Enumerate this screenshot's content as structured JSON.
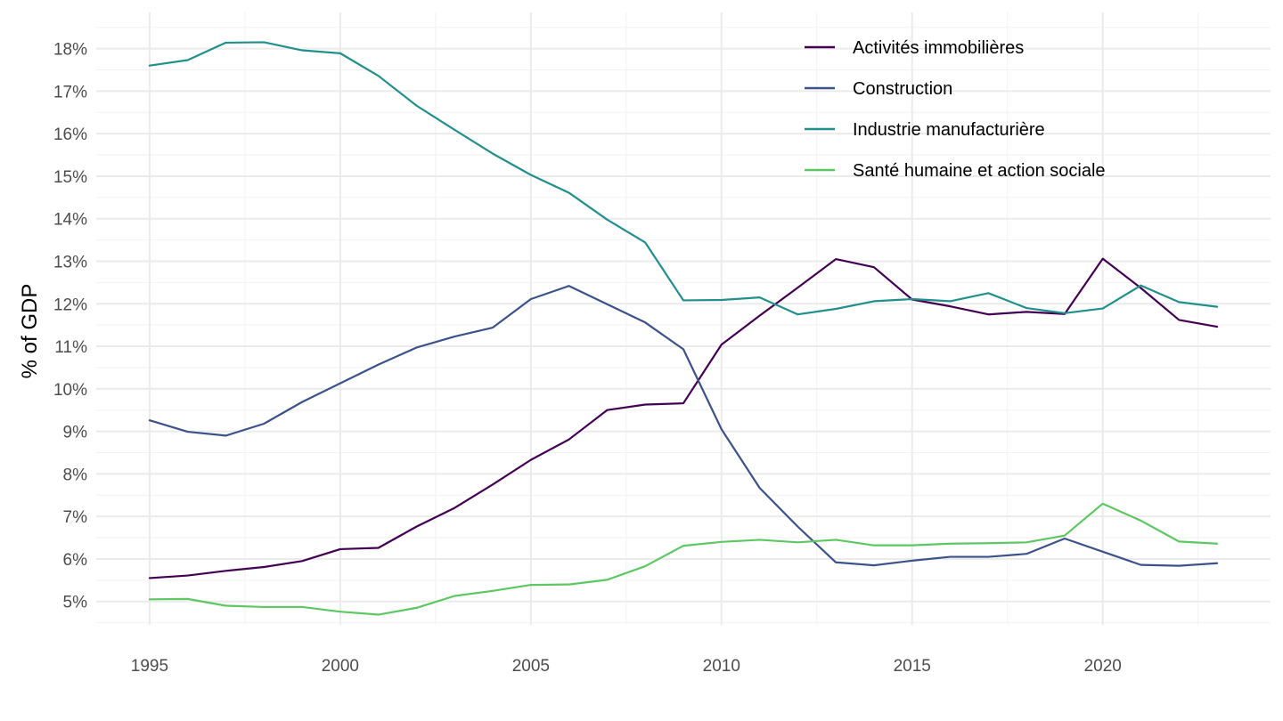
{
  "chart_data": {
    "type": "line",
    "title": "",
    "xlabel": "",
    "ylabel": "% of GDP",
    "x": [
      1995,
      1996,
      1997,
      1998,
      1999,
      2000,
      2001,
      2002,
      2003,
      2004,
      2005,
      2006,
      2007,
      2008,
      2009,
      2010,
      2011,
      2012,
      2013,
      2014,
      2015,
      2016,
      2017,
      2018,
      2019,
      2020,
      2021,
      2022,
      2023
    ],
    "xlim": [
      1993.6,
      2024.4
    ],
    "ylim": [
      4.45,
      18.85
    ],
    "x_ticks": [
      1995,
      2000,
      2005,
      2010,
      2015,
      2020
    ],
    "x_tick_labels": [
      "1995",
      "2000",
      "2005",
      "2010",
      "2015",
      "2020"
    ],
    "y_ticks": [
      5,
      6,
      7,
      8,
      9,
      10,
      11,
      12,
      13,
      14,
      15,
      16,
      17,
      18
    ],
    "y_tick_labels": [
      "5%",
      "6%",
      "7%",
      "8%",
      "9%",
      "10%",
      "11%",
      "12%",
      "13%",
      "14%",
      "15%",
      "16%",
      "17%",
      "18%"
    ],
    "grid": true,
    "legend_position": "top-right",
    "series": [
      {
        "name": "Activités immobilières",
        "color": "#440154",
        "values": [
          5.55,
          5.61,
          5.72,
          5.81,
          5.95,
          6.23,
          6.26,
          6.76,
          7.2,
          7.75,
          8.33,
          8.81,
          9.5,
          9.63,
          9.66,
          11.04,
          11.72,
          12.38,
          13.05,
          12.86,
          12.1,
          11.94,
          11.75,
          11.81,
          11.76,
          13.06,
          12.37,
          11.62,
          11.46
        ]
      },
      {
        "name": "Construction",
        "color": "#3B528B",
        "values": [
          9.26,
          8.99,
          8.9,
          9.18,
          9.69,
          10.13,
          10.57,
          10.97,
          11.23,
          11.44,
          12.11,
          12.42,
          11.99,
          11.56,
          10.93,
          9.05,
          7.67,
          6.76,
          5.92,
          5.85,
          5.96,
          6.05,
          6.05,
          6.12,
          6.48,
          6.17,
          5.86,
          5.84,
          5.9
        ]
      },
      {
        "name": "Industrie manufacturière",
        "color": "#21908C",
        "values": [
          17.6,
          17.73,
          18.14,
          18.15,
          17.96,
          17.89,
          17.36,
          16.66,
          16.09,
          15.53,
          15.03,
          14.61,
          13.98,
          13.44,
          12.08,
          12.09,
          12.15,
          11.75,
          11.88,
          12.06,
          12.11,
          12.06,
          12.25,
          11.9,
          11.78,
          11.89,
          12.43,
          12.04,
          11.93
        ]
      },
      {
        "name": "Santé humaine et action sociale",
        "color": "#5DC863",
        "values": [
          5.05,
          5.06,
          4.9,
          4.87,
          4.87,
          4.76,
          4.69,
          4.85,
          5.13,
          5.25,
          5.39,
          5.4,
          5.51,
          5.83,
          6.31,
          6.4,
          6.45,
          6.39,
          6.45,
          6.32,
          6.32,
          6.36,
          6.37,
          6.39,
          6.55,
          7.3,
          6.9,
          6.41,
          6.36
        ]
      }
    ]
  }
}
